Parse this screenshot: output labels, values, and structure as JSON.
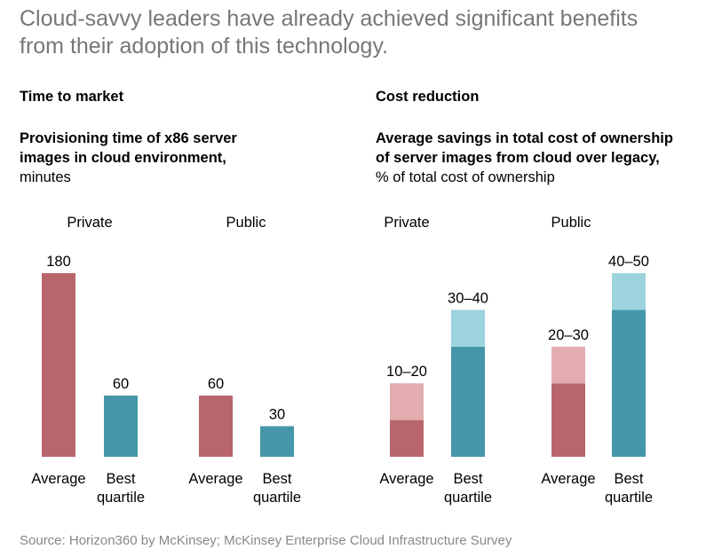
{
  "headline_line1": "Cloud-savvy leaders have already achieved significant benefits",
  "headline_line2": "from their adoption of this technology.",
  "colors": {
    "red": "#b8666c",
    "red_light": "#e3adb0",
    "teal": "#4496a8",
    "teal_light": "#9dd3dd"
  },
  "panels": [
    {
      "title": "Time to market",
      "subtitle_bold_1": "Provisioning time of x86 server",
      "subtitle_bold_2": "images in cloud environment,",
      "subtitle_unit": "minutes"
    },
    {
      "title": "Cost reduction",
      "subtitle_bold_1": "Average savings in total cost of ownership",
      "subtitle_bold_2": "of server images from cloud over legacy,",
      "subtitle_unit": "% of total cost of ownership"
    }
  ],
  "chart_data": [
    {
      "type": "bar",
      "title": "Time to market",
      "ylabel": "minutes",
      "ylim": [
        0,
        180
      ],
      "groups": [
        "Private",
        "Public"
      ],
      "categories": [
        "Average",
        "Best quartile"
      ],
      "bars": [
        {
          "group": "Private",
          "category": "Average",
          "label_lines": [
            "Average"
          ],
          "value": 180,
          "value_label": "180",
          "color": "red"
        },
        {
          "group": "Private",
          "category": "Best quartile",
          "label_lines": [
            "Best",
            "quartile"
          ],
          "value": 60,
          "value_label": "60",
          "color": "teal"
        },
        {
          "group": "Public",
          "category": "Average",
          "label_lines": [
            "Average"
          ],
          "value": 60,
          "value_label": "60",
          "color": "red"
        },
        {
          "group": "Public",
          "category": "Best quartile",
          "label_lines": [
            "Best",
            "quartile"
          ],
          "value": 30,
          "value_label": "30",
          "color": "teal"
        }
      ]
    },
    {
      "type": "bar",
      "title": "Cost reduction",
      "ylabel": "% of total cost of ownership",
      "ylim": [
        0,
        50
      ],
      "groups": [
        "Private",
        "Public"
      ],
      "categories": [
        "Average",
        "Best quartile"
      ],
      "bars": [
        {
          "group": "Private",
          "category": "Average",
          "label_lines": [
            "Average"
          ],
          "low": 10,
          "high": 20,
          "value_label": "10–20",
          "color": "red"
        },
        {
          "group": "Private",
          "category": "Best quartile",
          "label_lines": [
            "Best",
            "quartile"
          ],
          "low": 30,
          "high": 40,
          "value_label": "30–40",
          "color": "teal"
        },
        {
          "group": "Public",
          "category": "Average",
          "label_lines": [
            "Average"
          ],
          "low": 20,
          "high": 30,
          "value_label": "20–30",
          "color": "red"
        },
        {
          "group": "Public",
          "category": "Best quartile",
          "label_lines": [
            "Best",
            "quartile"
          ],
          "low": 40,
          "high": 50,
          "value_label": "40–50",
          "color": "teal"
        }
      ]
    }
  ],
  "source": "Source: Horizon360 by McKinsey; McKinsey Enterprise Cloud Infrastructure Survey"
}
